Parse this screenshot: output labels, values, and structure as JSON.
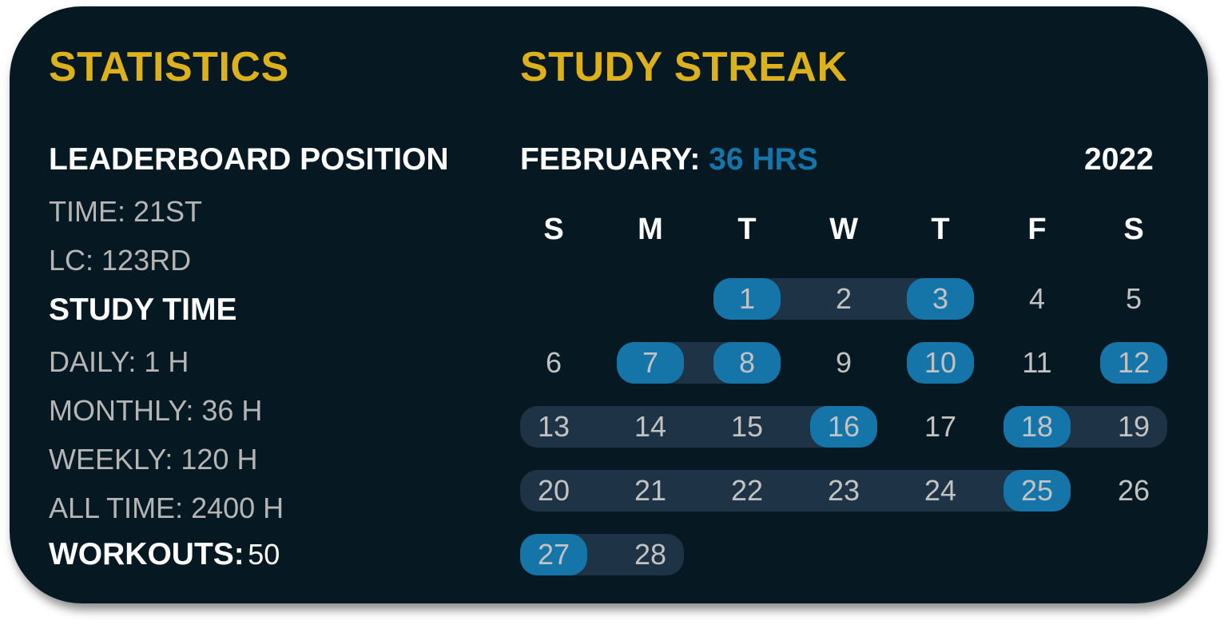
{
  "statistics": {
    "title": "STATISTICS",
    "leaderboard_heading": "LEADERBOARD POSITION",
    "time": "TIME: 21ST",
    "lc": "LC: 123RD",
    "study_time_heading": "STUDY TIME",
    "daily": "DAILY: 1 H",
    "monthly": "MONTHLY: 36 H",
    "weekly": "WEEKLY: 120 H",
    "all_time": "ALL TIME: 2400 H",
    "workouts_label": "WORKOUTS:",
    "workouts_value": "50"
  },
  "streak": {
    "title": "STUDY STREAK",
    "month_label": "FEBRUARY:",
    "month_hours": "36 HRS",
    "year": "2022",
    "weekdays": [
      "S",
      "M",
      "T",
      "W",
      "T",
      "F",
      "S"
    ],
    "first_weekday_index": 2,
    "days_in_month": 28,
    "highlighted_days": [
      1,
      3,
      7,
      8,
      10,
      12,
      16,
      18,
      25,
      27
    ],
    "streak_ranges": [
      [
        1,
        3
      ],
      [
        7,
        8
      ],
      [
        13,
        16
      ],
      [
        18,
        19
      ],
      [
        20,
        25
      ],
      [
        27,
        28
      ]
    ],
    "colors": {
      "accent": "#dcb11c",
      "highlight": "#1675a8",
      "streak": "#1e3345",
      "background": "#061923"
    }
  }
}
